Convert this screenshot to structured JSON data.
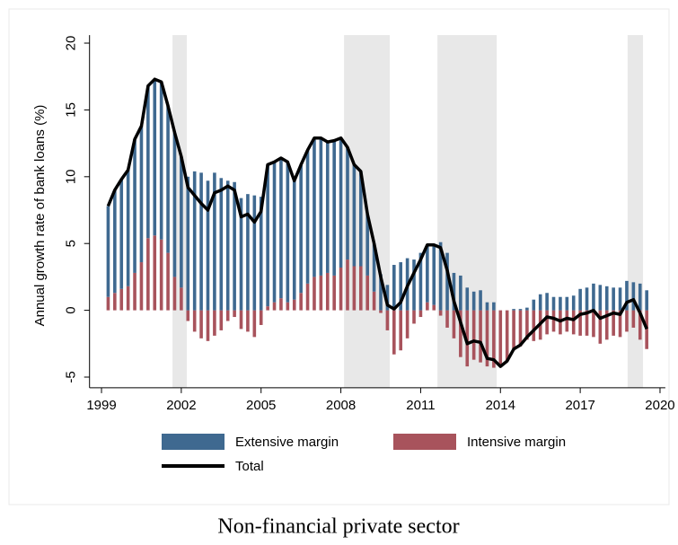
{
  "chart_data": {
    "type": "bar",
    "y_label": "Annual growth rate of bank loans (%)",
    "caption": "Non-financial private sector",
    "x": [
      1999.25,
      1999.5,
      1999.75,
      2000,
      2000.25,
      2000.5,
      2000.75,
      2001,
      2001.25,
      2001.5,
      2001.75,
      2002,
      2002.25,
      2002.5,
      2002.75,
      2003,
      2003.25,
      2003.5,
      2003.75,
      2004,
      2004.25,
      2004.5,
      2004.75,
      2005,
      2005.25,
      2005.5,
      2005.75,
      2006,
      2006.25,
      2006.5,
      2006.75,
      2007,
      2007.25,
      2007.5,
      2007.75,
      2008,
      2008.25,
      2008.5,
      2008.75,
      2009,
      2009.25,
      2009.5,
      2009.75,
      2010,
      2010.25,
      2010.5,
      2010.75,
      2011,
      2011.25,
      2011.5,
      2011.75,
      2012,
      2012.25,
      2012.5,
      2012.75,
      2013,
      2013.25,
      2013.5,
      2013.75,
      2014,
      2014.25,
      2014.5,
      2014.75,
      2015,
      2015.25,
      2015.5,
      2015.75,
      2016,
      2016.25,
      2016.5,
      2016.75,
      2017,
      2017.25,
      2017.5,
      2017.75,
      2018,
      2018.25,
      2018.5,
      2018.75,
      2019,
      2019.25,
      2019.5
    ],
    "series": [
      {
        "name": "Extensive margin",
        "type": "bar",
        "color": "#3f6990",
        "values": [
          6.8,
          7.7,
          8.2,
          8.7,
          10.0,
          10.2,
          11.4,
          11.7,
          11.8,
          11.0,
          10.8,
          9.8,
          10.0,
          10.4,
          10.3,
          9.7,
          10.3,
          9.9,
          9.7,
          9.6,
          8.4,
          8.7,
          8.6,
          8.5,
          10.6,
          10.5,
          10.5,
          10.5,
          8.9,
          9.6,
          10.0,
          10.4,
          10.3,
          9.8,
          10.1,
          9.7,
          8.4,
          7.6,
          7.1,
          4.6,
          3.6,
          2.7,
          1.9,
          3.4,
          3.6,
          3.9,
          3.8,
          4.3,
          4.3,
          4.5,
          5.1,
          4.3,
          2.8,
          2.6,
          1.7,
          1.4,
          1.5,
          0.6,
          0.6,
          0.0,
          0.0,
          0.1,
          0.1,
          0.2,
          0.8,
          1.2,
          1.3,
          1.0,
          1.0,
          1.0,
          1.1,
          1.6,
          1.7,
          2.0,
          1.9,
          1.8,
          1.7,
          1.7,
          2.2,
          2.1,
          2.0,
          1.5
        ]
      },
      {
        "name": "Intensive margin",
        "type": "bar",
        "color": "#a8535c",
        "values": [
          1.0,
          1.3,
          1.6,
          1.8,
          2.8,
          3.6,
          5.4,
          5.6,
          5.3,
          4.3,
          2.5,
          1.7,
          -0.8,
          -1.6,
          -2.1,
          -2.3,
          -1.9,
          -1.5,
          -0.8,
          -0.5,
          -1.4,
          -1.6,
          -2.0,
          -1.1,
          0.3,
          0.6,
          0.9,
          0.6,
          0.8,
          1.3,
          2.0,
          2.5,
          2.6,
          2.8,
          2.6,
          3.2,
          3.8,
          3.3,
          3.3,
          2.6,
          1.4,
          -0.2,
          -1.5,
          -3.3,
          -3.0,
          -2.1,
          -1.0,
          -0.5,
          0.6,
          0.4,
          -0.4,
          -1.3,
          -2.1,
          -3.5,
          -4.2,
          -3.7,
          -3.9,
          -4.2,
          -4.3,
          -4.2,
          -3.8,
          -3.0,
          -2.7,
          -2.2,
          -2.3,
          -2.2,
          -1.8,
          -1.6,
          -1.8,
          -1.6,
          -1.8,
          -1.9,
          -1.9,
          -2.0,
          -2.5,
          -2.2,
          -1.9,
          -2.0,
          -1.6,
          -1.3,
          -2.2,
          -2.9
        ]
      },
      {
        "name": "Total",
        "type": "line",
        "color": "#000000",
        "values": [
          7.8,
          9.0,
          9.8,
          10.5,
          12.8,
          13.8,
          16.8,
          17.3,
          17.1,
          15.3,
          13.3,
          11.5,
          9.2,
          8.6,
          8.0,
          7.5,
          8.8,
          9.0,
          9.3,
          9.0,
          7.0,
          7.2,
          6.6,
          7.4,
          10.9,
          11.1,
          11.4,
          11.1,
          9.7,
          10.9,
          12.0,
          12.9,
          12.9,
          12.6,
          12.7,
          12.9,
          12.2,
          10.9,
          10.4,
          7.2,
          5.0,
          2.5,
          0.4,
          0.1,
          0.6,
          1.8,
          2.8,
          3.8,
          4.9,
          4.9,
          4.7,
          3.0,
          0.7,
          -0.9,
          -2.5,
          -2.3,
          -2.4,
          -3.6,
          -3.7,
          -4.2,
          -3.8,
          -2.9,
          -2.6,
          -2.0,
          -1.5,
          -1.0,
          -0.5,
          -0.6,
          -0.8,
          -0.6,
          -0.7,
          -0.3,
          -0.2,
          0.0,
          -0.6,
          -0.4,
          -0.2,
          -0.3,
          0.6,
          0.8,
          -0.2,
          -1.4
        ]
      }
    ],
    "shaded_periods": [
      [
        2001.67,
        2002.21
      ],
      [
        2008.12,
        2009.84
      ],
      [
        2011.63,
        2013.86
      ],
      [
        2018.78,
        2019.36
      ]
    ],
    "shade_color": "#e8e8e8",
    "xlim": [
      1998.55,
      2020.2
    ],
    "xticks": [
      1999,
      2002,
      2005,
      2008,
      2011,
      2014,
      2017,
      2020
    ],
    "ylim": [
      -5.8,
      20.6
    ],
    "yticks": [
      -5,
      0,
      5,
      10,
      15,
      20
    ],
    "legend": "bottom"
  }
}
